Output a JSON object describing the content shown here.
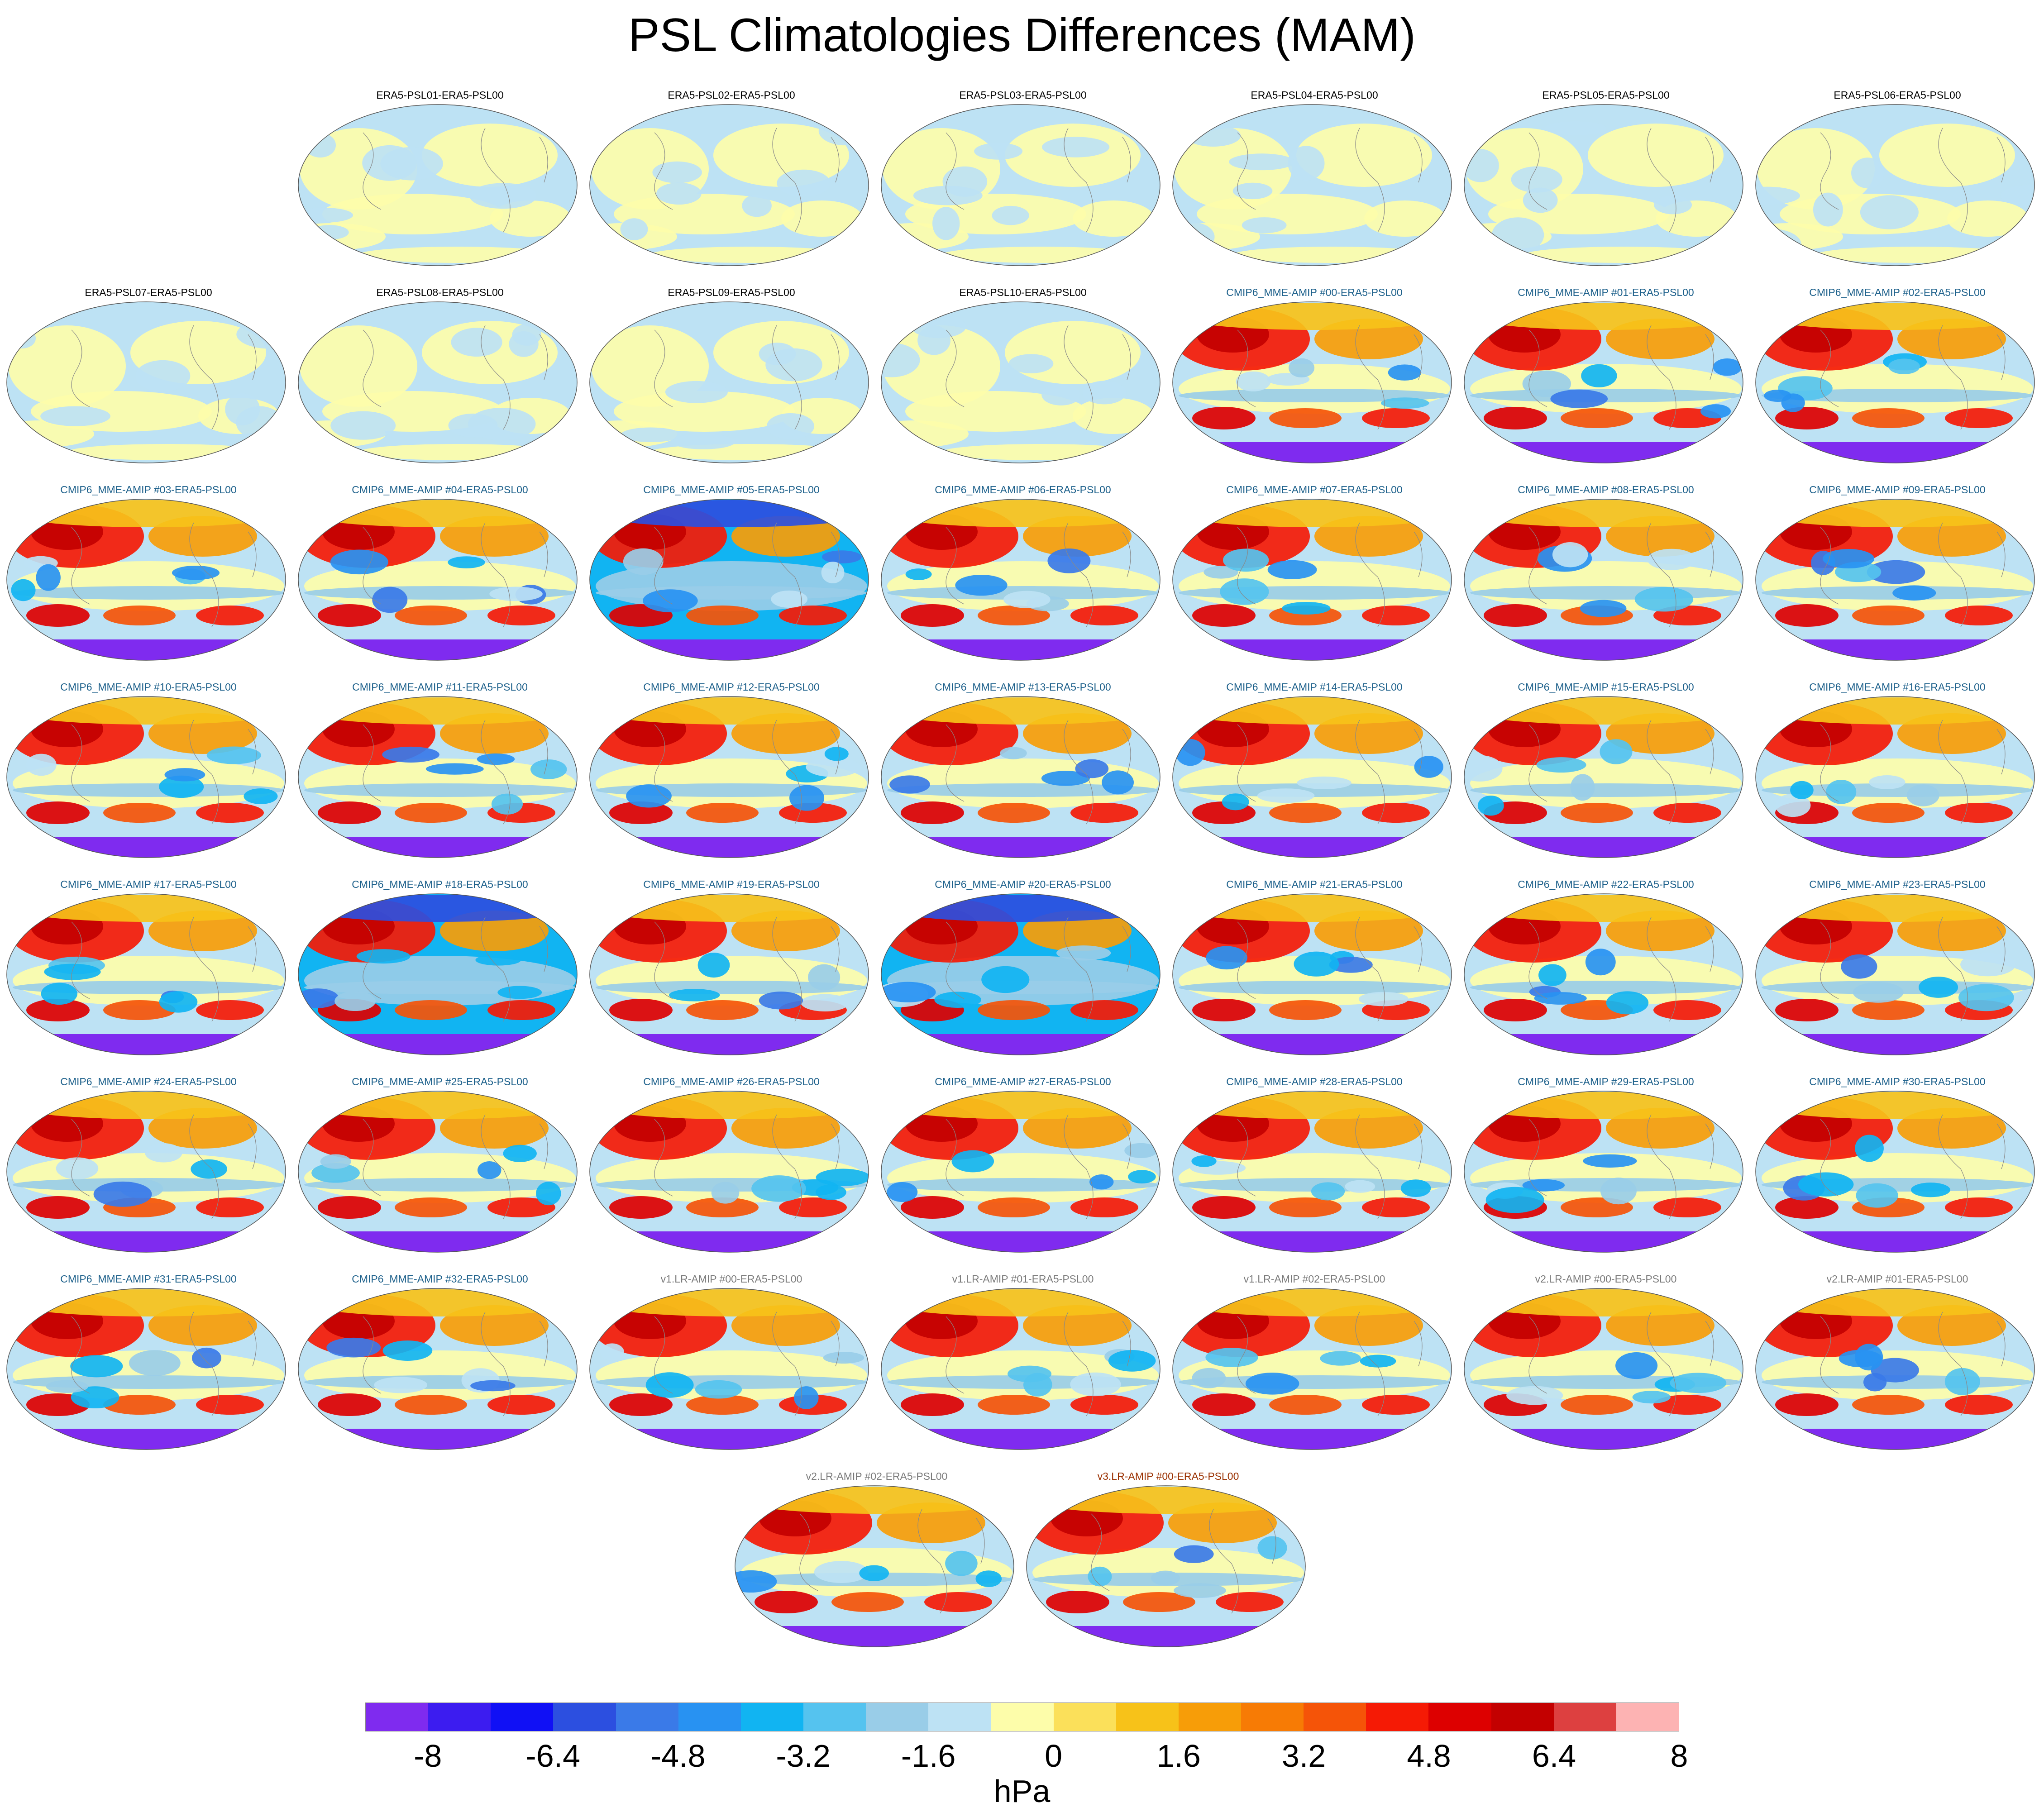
{
  "title": "PSL Climatologies Differences (MAM)",
  "colorbar": {
    "units": "hPa",
    "tick_labels": [
      "-8",
      "-6.4",
      "-4.8",
      "-3.2",
      "-1.6",
      "0",
      "1.6",
      "3.2",
      "4.8",
      "6.4",
      "8"
    ],
    "colors": [
      "#7f2bef",
      "#3c1cf0",
      "#1010f5",
      "#2c4fe0",
      "#3a7ae8",
      "#2892f2",
      "#11b4f2",
      "#55c3ef",
      "#99cde8",
      "#bde2f4",
      "#fdfdaa",
      "#fbe05a",
      "#f7c219",
      "#f79d08",
      "#f77b05",
      "#f55408",
      "#f51a05",
      "#dd0000",
      "#c30000",
      "#dd4040",
      "#fdb3b3"
    ]
  },
  "panel_colors": {
    "era5": "#000000",
    "cmip6": "#1b5f8a",
    "lr": "#7a7a7a",
    "v3": "#9a3000"
  },
  "panels": [
    {
      "title": "ERA5-PSL01-ERA5-PSL00",
      "group": "era5"
    },
    {
      "title": "ERA5-PSL02-ERA5-PSL00",
      "group": "era5"
    },
    {
      "title": "ERA5-PSL03-ERA5-PSL00",
      "group": "era5"
    },
    {
      "title": "ERA5-PSL04-ERA5-PSL00",
      "group": "era5"
    },
    {
      "title": "ERA5-PSL05-ERA5-PSL00",
      "group": "era5"
    },
    {
      "title": "ERA5-PSL06-ERA5-PSL00",
      "group": "era5"
    },
    {
      "title": "ERA5-PSL07-ERA5-PSL00",
      "group": "era5"
    },
    {
      "title": "ERA5-PSL08-ERA5-PSL00",
      "group": "era5"
    },
    {
      "title": "ERA5-PSL09-ERA5-PSL00",
      "group": "era5"
    },
    {
      "title": "ERA5-PSL10-ERA5-PSL00",
      "group": "era5"
    },
    {
      "title": "CMIP6_MME-AMIP  #00-ERA5-PSL00",
      "group": "cmip6"
    },
    {
      "title": "CMIP6_MME-AMIP  #01-ERA5-PSL00",
      "group": "cmip6"
    },
    {
      "title": "CMIP6_MME-AMIP  #02-ERA5-PSL00",
      "group": "cmip6"
    },
    {
      "title": "CMIP6_MME-AMIP  #03-ERA5-PSL00",
      "group": "cmip6"
    },
    {
      "title": "CMIP6_MME-AMIP  #04-ERA5-PSL00",
      "group": "cmip6"
    },
    {
      "title": "CMIP6_MME-AMIP  #05-ERA5-PSL00",
      "group": "cmip6"
    },
    {
      "title": "CMIP6_MME-AMIP  #06-ERA5-PSL00",
      "group": "cmip6"
    },
    {
      "title": "CMIP6_MME-AMIP  #07-ERA5-PSL00",
      "group": "cmip6"
    },
    {
      "title": "CMIP6_MME-AMIP  #08-ERA5-PSL00",
      "group": "cmip6"
    },
    {
      "title": "CMIP6_MME-AMIP  #09-ERA5-PSL00",
      "group": "cmip6"
    },
    {
      "title": "CMIP6_MME-AMIP  #10-ERA5-PSL00",
      "group": "cmip6"
    },
    {
      "title": "CMIP6_MME-AMIP  #11-ERA5-PSL00",
      "group": "cmip6"
    },
    {
      "title": "CMIP6_MME-AMIP  #12-ERA5-PSL00",
      "group": "cmip6"
    },
    {
      "title": "CMIP6_MME-AMIP  #13-ERA5-PSL00",
      "group": "cmip6"
    },
    {
      "title": "CMIP6_MME-AMIP  #14-ERA5-PSL00",
      "group": "cmip6"
    },
    {
      "title": "CMIP6_MME-AMIP  #15-ERA5-PSL00",
      "group": "cmip6"
    },
    {
      "title": "CMIP6_MME-AMIP  #16-ERA5-PSL00",
      "group": "cmip6"
    },
    {
      "title": "CMIP6_MME-AMIP  #17-ERA5-PSL00",
      "group": "cmip6"
    },
    {
      "title": "CMIP6_MME-AMIP  #18-ERA5-PSL00",
      "group": "cmip6"
    },
    {
      "title": "CMIP6_MME-AMIP  #19-ERA5-PSL00",
      "group": "cmip6"
    },
    {
      "title": "CMIP6_MME-AMIP  #20-ERA5-PSL00",
      "group": "cmip6"
    },
    {
      "title": "CMIP6_MME-AMIP  #21-ERA5-PSL00",
      "group": "cmip6"
    },
    {
      "title": "CMIP6_MME-AMIP  #22-ERA5-PSL00",
      "group": "cmip6"
    },
    {
      "title": "CMIP6_MME-AMIP  #23-ERA5-PSL00",
      "group": "cmip6"
    },
    {
      "title": "CMIP6_MME-AMIP  #24-ERA5-PSL00",
      "group": "cmip6"
    },
    {
      "title": "CMIP6_MME-AMIP  #25-ERA5-PSL00",
      "group": "cmip6"
    },
    {
      "title": "CMIP6_MME-AMIP  #26-ERA5-PSL00",
      "group": "cmip6"
    },
    {
      "title": "CMIP6_MME-AMIP  #27-ERA5-PSL00",
      "group": "cmip6"
    },
    {
      "title": "CMIP6_MME-AMIP  #28-ERA5-PSL00",
      "group": "cmip6"
    },
    {
      "title": "CMIP6_MME-AMIP  #29-ERA5-PSL00",
      "group": "cmip6"
    },
    {
      "title": "CMIP6_MME-AMIP  #30-ERA5-PSL00",
      "group": "cmip6"
    },
    {
      "title": "CMIP6_MME-AMIP  #31-ERA5-PSL00",
      "group": "cmip6"
    },
    {
      "title": "CMIP6_MME-AMIP  #32-ERA5-PSL00",
      "group": "cmip6"
    },
    {
      "title": "v1.LR-AMIP  #00-ERA5-PSL00",
      "group": "lr"
    },
    {
      "title": "v1.LR-AMIP  #01-ERA5-PSL00",
      "group": "lr"
    },
    {
      "title": "v1.LR-AMIP  #02-ERA5-PSL00",
      "group": "lr"
    },
    {
      "title": "v2.LR-AMIP  #00-ERA5-PSL00",
      "group": "lr"
    },
    {
      "title": "v2.LR-AMIP  #01-ERA5-PSL00",
      "group": "lr"
    },
    {
      "title": "v2.LR-AMIP  #02-ERA5-PSL00",
      "group": "lr"
    },
    {
      "title": "v3.LR-AMIP  #00-ERA5-PSL00",
      "group": "v3"
    }
  ]
}
